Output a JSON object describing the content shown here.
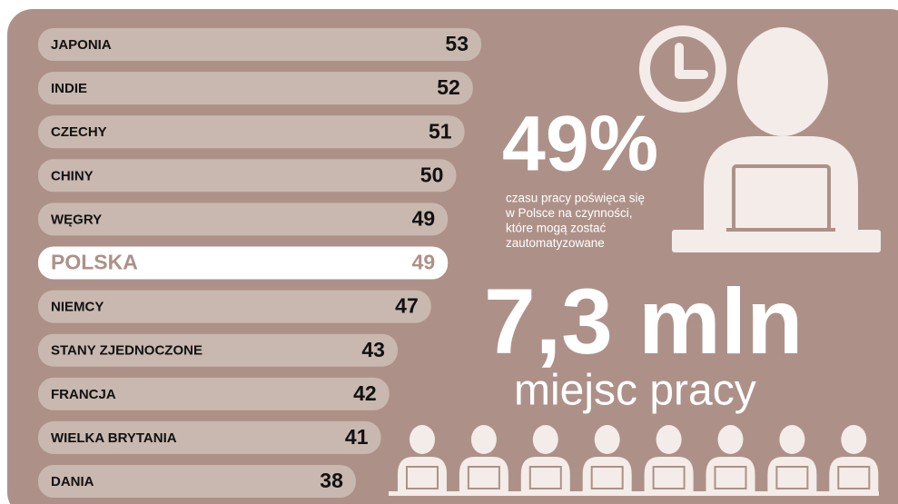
{
  "chart_data": {
    "type": "bar",
    "orientation": "horizontal",
    "categories": [
      "JAPONIA",
      "INDIE",
      "CZECHY",
      "CHINY",
      "WĘGRY",
      "POLSKA",
      "NIEMCY",
      "STANY ZJEDNOCZONE",
      "FRANCJA",
      "WIELKA BRYTANIA",
      "DANIA"
    ],
    "values": [
      53,
      52,
      51,
      50,
      49,
      49,
      47,
      43,
      42,
      41,
      38
    ],
    "color": "#c9b8af",
    "highlight": {
      "category": "POLSKA",
      "color": "#ffffff",
      "text_color": "#ad9188"
    },
    "xlim": [
      0,
      53
    ]
  },
  "annotations": {
    "share": "49%",
    "share_text": [
      "czasu pracy poświęca się",
      "w Polsce  na czynności,",
      "które mogą zostać",
      "zautomatyzowane"
    ],
    "jobs": "7,3 mln",
    "jobs_text": "miejsc pracy"
  }
}
